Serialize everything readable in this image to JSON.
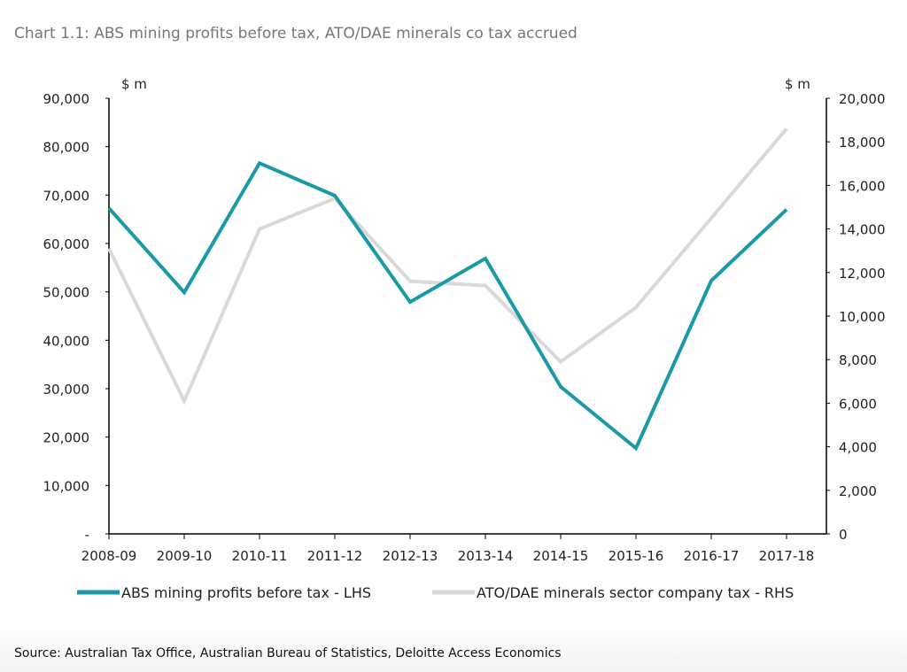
{
  "chart_data": {
    "type": "line",
    "title": "Chart 1.1: ABS mining profits before tax, ATO/DAE minerals co tax accrued",
    "categories": [
      "2008-09",
      "2009-10",
      "2010-11",
      "2011-12",
      "2012-13",
      "2013-14",
      "2014-15",
      "2015-16",
      "2016-17",
      "2017-18"
    ],
    "left_axis": {
      "unit_label": "$ m",
      "ylim": [
        0,
        90000
      ],
      "ticks": [
        "-",
        "10,000",
        "20,000",
        "30,000",
        "40,000",
        "50,000",
        "60,000",
        "70,000",
        "80,000",
        "90,000"
      ]
    },
    "right_axis": {
      "unit_label": "$ m",
      "ylim": [
        0,
        20000
      ],
      "ticks": [
        "0",
        "2,000",
        "4,000",
        "6,000",
        "8,000",
        "10,000",
        "12,000",
        "14,000",
        "16,000",
        "18,000",
        "20,000"
      ]
    },
    "series": [
      {
        "name": "ABS mining profits before tax - LHS",
        "axis": "left",
        "color": "#1a9aa6",
        "values": [
          67300,
          49900,
          76600,
          69900,
          47900,
          56900,
          30400,
          17700,
          52300,
          67000
        ]
      },
      {
        "name": "ATO/DAE minerals sector company tax - RHS",
        "axis": "right",
        "color": "#d9d9d9",
        "values": [
          13100,
          6100,
          14000,
          15400,
          11600,
          11400,
          7900,
          10400,
          14500,
          18600
        ]
      }
    ],
    "legend": "bottom",
    "grid": false
  },
  "source": "Source: Australian Tax Office, Australian Bureau of Statistics, Deloitte Access Economics"
}
